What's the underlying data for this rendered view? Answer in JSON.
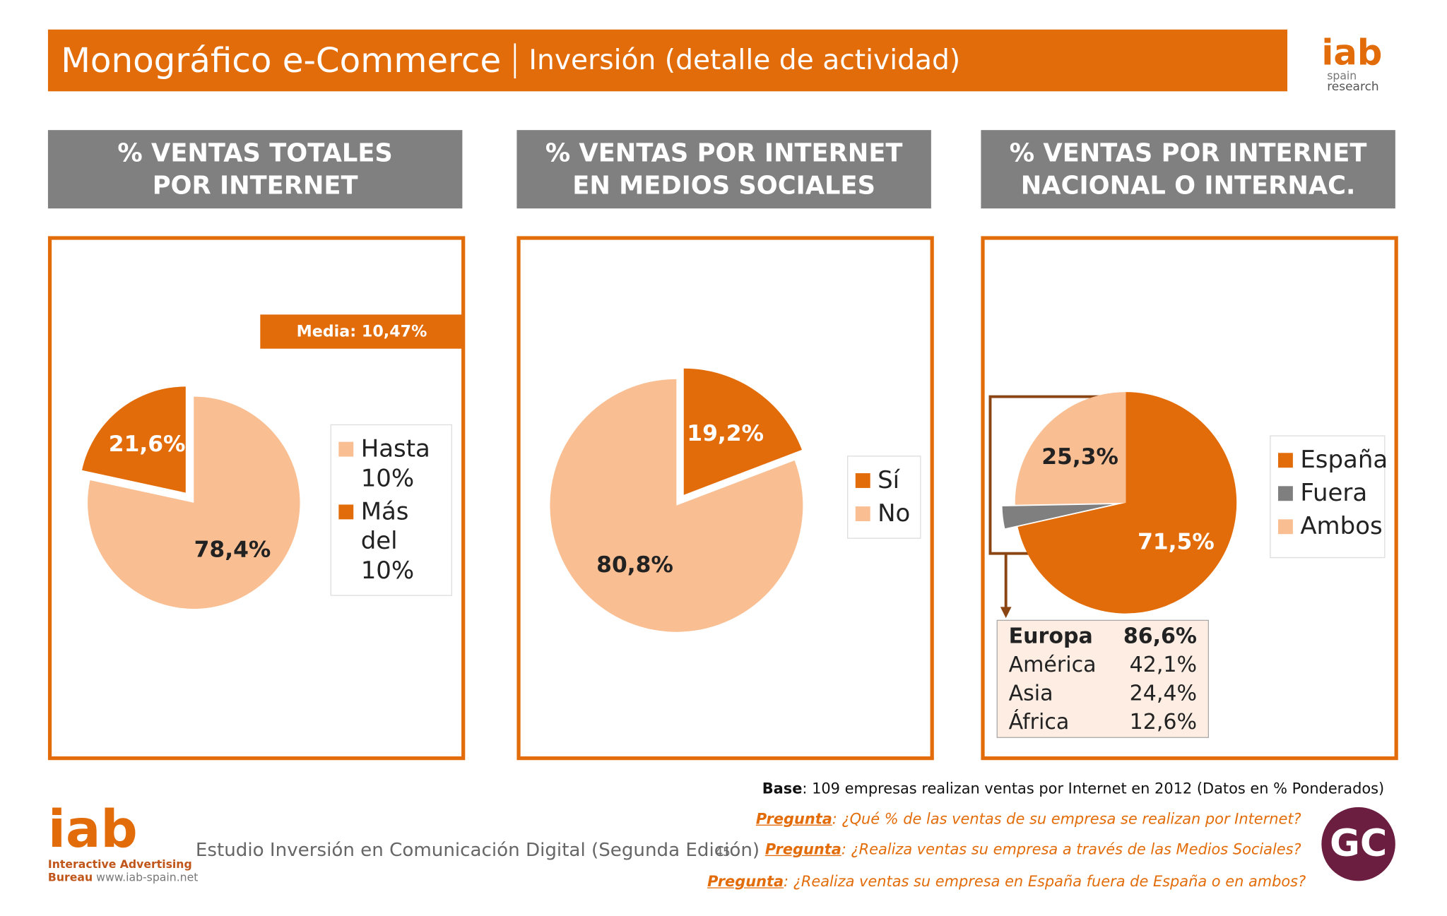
{
  "header": {
    "title": "Monográfico e-Commerce",
    "subtitle": "Inversión (detalle de actividad)"
  },
  "logo_top": {
    "name": "iab",
    "line1": "spain",
    "line2": "research"
  },
  "chart_data": [
    {
      "type": "pie",
      "title": "% VENTAS TOTALES\nPOR INTERNET",
      "categories": [
        "Hasta 10%",
        "Más del 10%"
      ],
      "values": [
        78.4,
        21.6
      ],
      "value_labels": [
        "78,4%",
        "21,6%"
      ],
      "colors": [
        "#F9BE91",
        "#E36C0A"
      ],
      "exploded": [
        false,
        true
      ],
      "annotation": "Media: 10,47%"
    },
    {
      "type": "pie",
      "title": "% VENTAS POR INTERNET\nEN MEDIOS SOCIALES",
      "categories": [
        "Sí",
        "No"
      ],
      "values": [
        19.2,
        80.8
      ],
      "value_labels": [
        "19,2%",
        "80,8%"
      ],
      "colors": [
        "#E36C0A",
        "#F9BE91"
      ],
      "exploded": [
        true,
        false
      ]
    },
    {
      "type": "pie",
      "title": "% VENTAS POR INTERNET\nNACIONAL O INTERNAC.",
      "categories": [
        "España",
        "Fuera",
        "Ambos"
      ],
      "values": [
        71.5,
        3.2,
        25.3
      ],
      "value_labels": [
        "71,5%",
        null,
        "25,3%"
      ],
      "colors": [
        "#E36C0A",
        "#7F7F7F",
        "#F9BE91"
      ],
      "exploded": [
        false,
        true,
        false
      ]
    }
  ],
  "detail_table": {
    "rows": [
      [
        "Europa",
        "86,6%"
      ],
      [
        "América",
        "42,1%"
      ],
      [
        "Asia",
        "24,4%"
      ],
      [
        "África",
        "12,6%"
      ]
    ]
  },
  "footer": {
    "base_label": "Base",
    "base_text": ": 109 empresas realizan ventas por Internet en 2012 (Datos en % Ponderados)",
    "questions": [
      {
        "label": "Pregunta",
        "text": ": ¿Qué % de las ventas de su empresa se realizan por Internet?"
      },
      {
        "label": "Pregunta",
        "text": ": ¿Realiza ventas su empresa a través de las Medios Sociales?"
      },
      {
        "label": "Pregunta",
        "text": ": ¿Realiza ventas su empresa en España fuera de España o en ambos?"
      }
    ],
    "study": "Estudio Inversión en Comunicación Digital (Segunda Edición)",
    "page": "45",
    "logo": {
      "name": "iab",
      "line1": "Interactive Advertising",
      "line2": "Bureau",
      "url": "www.iab-spain.net"
    },
    "badge": "GC"
  }
}
